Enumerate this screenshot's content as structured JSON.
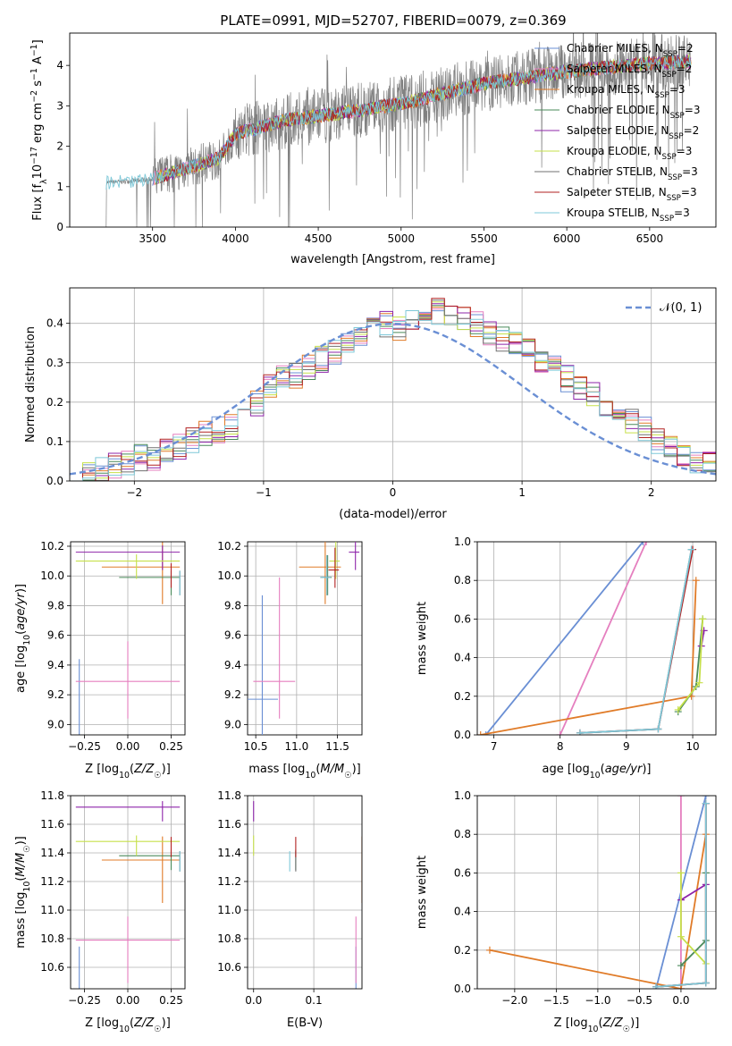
{
  "figure": {
    "title": "PLATE=0991, MJD=52707, FIBERID=0079, z=0.369"
  },
  "colors": {
    "grid": "#b0b0b0",
    "chabrier_miles": "#6a8fd4",
    "salpeter_miles": "#e57fbf",
    "kroupa_miles": "#e07b28",
    "chabrier_elodie": "#4a8a5a",
    "salpeter_elodie": "#8e24aa",
    "kroupa_elodie": "#c6e04a",
    "chabrier_stelib": "#707070",
    "salpeter_stelib": "#b22222",
    "kroupa_stelib": "#7ec8d8",
    "spectrum": "#808080",
    "gauss": "#6a8fd4"
  },
  "chart_data": [
    {
      "id": "spectrum",
      "type": "line",
      "xlabel": "wavelength [Angstrom, rest frame]",
      "ylabel_parts": [
        "Flux [f",
        "λ",
        "10",
        "−17",
        " erg cm",
        "−2",
        " s",
        "−1",
        " A",
        "−1",
        "]"
      ],
      "xlim": [
        3000,
        6900
      ],
      "ylim": [
        0,
        4.8
      ],
      "xticks": [
        3500,
        4000,
        4500,
        5000,
        5500,
        6000,
        6500
      ],
      "yticks": [
        0,
        1,
        2,
        3,
        4
      ],
      "legend_position": "upper right",
      "series": [
        {
          "key": "chabrier_miles",
          "label": "Chabrier MILES, N",
          "n": "2"
        },
        {
          "key": "salpeter_miles",
          "label": "Salpeter MILES, N",
          "n": "2"
        },
        {
          "key": "kroupa_miles",
          "label": "Kroupa MILES, N",
          "n": "3"
        },
        {
          "key": "chabrier_elodie",
          "label": "Chabrier ELODIE, N",
          "n": "3"
        },
        {
          "key": "salpeter_elodie",
          "label": "Salpeter ELODIE, N",
          "n": "2"
        },
        {
          "key": "kroupa_elodie",
          "label": "Kroupa ELODIE, N",
          "n": "3"
        },
        {
          "key": "chabrier_stelib",
          "label": "Chabrier STELIB, N",
          "n": "3"
        },
        {
          "key": "salpeter_stelib",
          "label": "Salpeter STELIB, N",
          "n": "3"
        },
        {
          "key": "kroupa_stelib",
          "label": "Kroupa STELIB, N",
          "n": "3"
        }
      ],
      "legend_sub": "SSP",
      "continuum": [
        [
          3220,
          1.1
        ],
        [
          3400,
          1.15
        ],
        [
          3500,
          1.2
        ],
        [
          3700,
          1.45
        ],
        [
          3900,
          1.7
        ],
        [
          4000,
          2.3
        ],
        [
          4300,
          2.65
        ],
        [
          4600,
          2.8
        ],
        [
          5000,
          3.05
        ],
        [
          5500,
          3.55
        ],
        [
          6000,
          3.85
        ],
        [
          6500,
          4.05
        ],
        [
          6750,
          4.1
        ]
      ]
    },
    {
      "id": "residuals",
      "type": "bar",
      "xlabel": "(data-model)/error",
      "ylabel": "Normed distribution",
      "xlim": [
        -2.5,
        2.5
      ],
      "ylim": [
        0,
        0.49
      ],
      "xticks": [
        -2,
        -1,
        0,
        1,
        2
      ],
      "yticks": [
        0.0,
        0.1,
        0.2,
        0.3,
        0.4
      ],
      "legend_position": "upper right",
      "legend_label": "𝒩(0, 1)",
      "bin_width": 0.1,
      "bins_start": -2.5,
      "base_values": [
        0.02,
        0.02,
        0.03,
        0.04,
        0.05,
        0.06,
        0.06,
        0.08,
        0.09,
        0.1,
        0.12,
        0.13,
        0.14,
        0.18,
        0.2,
        0.24,
        0.26,
        0.27,
        0.29,
        0.31,
        0.33,
        0.36,
        0.37,
        0.39,
        0.4,
        0.39,
        0.4,
        0.41,
        0.43,
        0.42,
        0.41,
        0.4,
        0.38,
        0.36,
        0.35,
        0.33,
        0.31,
        0.29,
        0.26,
        0.24,
        0.22,
        0.19,
        0.17,
        0.15,
        0.13,
        0.1,
        0.08,
        0.06,
        0.05,
        0.04
      ]
    },
    {
      "id": "age_vs_Z",
      "type": "scatter",
      "xlabel": "Z [log10(Z/Z☉)]",
      "ylabel": "age [log10(age/yr)]",
      "xlim": [
        -0.33,
        0.33
      ],
      "ylim": [
        8.93,
        10.23
      ],
      "xticks": [
        -0.25,
        0.0,
        0.25
      ],
      "yticks": [
        9.0,
        9.2,
        9.4,
        9.6,
        9.8,
        10.0,
        10.2
      ]
    },
    {
      "id": "age_vs_mass",
      "type": "scatter",
      "xlabel": "mass [log10(M/M☉)]",
      "xlim": [
        10.4,
        11.8
      ],
      "ylim": [
        8.93,
        10.23
      ],
      "xticks": [
        10.5,
        11.0,
        11.5
      ],
      "yticks": [
        9.0,
        9.2,
        9.4,
        9.6,
        9.8,
        10.0,
        10.2
      ]
    },
    {
      "id": "weight_vs_age",
      "type": "line",
      "xlabel": "age [log10(age/yr)]",
      "ylabel": "mass weight",
      "xlim": [
        6.75,
        10.35
      ],
      "ylim": [
        0,
        1
      ],
      "xticks": [
        7,
        8,
        9,
        10
      ],
      "yticks": [
        0.0,
        0.2,
        0.4,
        0.6,
        0.8,
        1.0
      ]
    },
    {
      "id": "mass_vs_Z",
      "type": "scatter",
      "xlabel": "Z [log10(Z/Z☉)]",
      "ylabel": "mass [log10(M/M☉)]",
      "xlim": [
        -0.33,
        0.33
      ],
      "ylim": [
        10.45,
        11.8
      ],
      "xticks": [
        -0.25,
        0.0,
        0.25
      ],
      "yticks": [
        10.6,
        10.8,
        11.0,
        11.2,
        11.4,
        11.6,
        11.8
      ]
    },
    {
      "id": "mass_vs_ebv",
      "type": "scatter",
      "xlabel": "E(B-V)",
      "xlim": [
        -0.01,
        0.18
      ],
      "ylim": [
        10.45,
        11.8
      ],
      "xticks": [
        0.0,
        0.1
      ],
      "yticks": [
        10.6,
        10.8,
        11.0,
        11.2,
        11.4,
        11.6,
        11.8
      ]
    },
    {
      "id": "weight_vs_Z",
      "type": "line",
      "xlabel": "Z [log10(Z/Z☉)]",
      "ylabel": "mass weight",
      "xlim": [
        -2.45,
        0.42
      ],
      "ylim": [
        0,
        1
      ],
      "xticks": [
        -2.0,
        -1.5,
        -1.0,
        -0.5,
        0.0
      ],
      "yticks": [
        0.0,
        0.2,
        0.4,
        0.6,
        0.8,
        1.0
      ]
    }
  ],
  "fits": [
    {
      "key": "chabrier_miles",
      "Z": [
        -0.28,
        0.3,
        0.3
      ],
      "age": [
        9.17,
        9.17,
        9.17
      ],
      "mass": [
        10.58,
        10.58,
        10.58
      ],
      "ebv": 0.17
    },
    {
      "key": "salpeter_miles",
      "Z": [
        0.0,
        0.3,
        -0.3
      ],
      "age": [
        9.29,
        9.29,
        9.29
      ],
      "mass": [
        10.79,
        10.79,
        10.79
      ],
      "ebv": 0.17
    },
    {
      "key": "kroupa_miles",
      "Z": [
        0.2,
        0.3,
        -0.15
      ],
      "age": [
        10.06,
        10.06,
        10.06
      ],
      "mass": [
        11.35,
        11.35,
        11.35
      ],
      "ebv": 0.18
    },
    {
      "key": "chabrier_elodie",
      "Z": [
        0.25,
        0.3,
        -0.05
      ],
      "age": [
        9.99,
        9.99,
        9.99
      ],
      "mass": [
        11.38,
        11.38,
        11.38
      ],
      "ebv": 0.07
    },
    {
      "key": "salpeter_elodie",
      "Z": [
        0.2,
        0.3,
        -0.3
      ],
      "age": [
        10.16,
        10.16,
        10.16
      ],
      "mass": [
        11.72,
        11.72,
        11.72
      ],
      "ebv": 0.0
    },
    {
      "key": "kroupa_elodie",
      "Z": [
        0.05,
        0.3,
        -0.3
      ],
      "age": [
        10.1,
        10.1,
        10.1
      ],
      "mass": [
        11.48,
        11.48,
        11.48
      ],
      "ebv": 0.0
    },
    {
      "key": "chabrier_stelib",
      "Z": [
        0.3,
        0.3,
        0.3
      ],
      "age": [
        9.99,
        9.99,
        9.99
      ],
      "mass": [
        11.37,
        11.37,
        11.37
      ],
      "ebv": 0.07
    },
    {
      "key": "salpeter_stelib",
      "Z": [
        0.25,
        0.3,
        0.3
      ],
      "age": [
        10.04,
        10.04,
        10.04
      ],
      "mass": [
        11.47,
        11.47,
        11.47
      ],
      "ebv": 0.07
    },
    {
      "key": "kroupa_stelib",
      "Z": [
        0.3,
        0.3,
        0.3
      ],
      "age": [
        9.99,
        9.99,
        9.99
      ],
      "mass": [
        11.37,
        11.37,
        11.37
      ],
      "ebv": 0.06
    }
  ],
  "weights": [
    {
      "key": "chabrier_miles",
      "age": [
        6.88,
        9.25
      ],
      "w": [
        0.0,
        1.0
      ],
      "Z": [
        -0.3,
        0.3
      ],
      "wz": [
        0.0,
        1.0
      ]
    },
    {
      "key": "salpeter_miles",
      "age": [
        8.0,
        9.3
      ],
      "w": [
        0.0,
        1.0
      ],
      "Z": [
        0.0,
        0.0
      ],
      "wz": [
        0.0,
        1.0
      ]
    },
    {
      "key": "kroupa_miles",
      "age": [
        6.8,
        9.98,
        10.05
      ],
      "w": [
        0.0,
        0.2,
        0.8
      ],
      "Z": [
        -2.3,
        0.0,
        0.3
      ],
      "wz": [
        0.2,
        0.0,
        0.8
      ]
    },
    {
      "key": "chabrier_elodie",
      "age": [
        9.78,
        10.05,
        10.15
      ],
      "w": [
        0.12,
        0.25,
        0.6
      ],
      "Z": [
        0.0,
        0.3,
        0.3
      ],
      "wz": [
        0.12,
        0.25,
        0.6
      ]
    },
    {
      "key": "salpeter_elodie",
      "age": [
        10.13,
        10.17
      ],
      "w": [
        0.46,
        0.54
      ],
      "Z": [
        0.0,
        0.3
      ],
      "wz": [
        0.46,
        0.54
      ]
    },
    {
      "key": "kroupa_elodie",
      "age": [
        9.78,
        10.1,
        10.15
      ],
      "w": [
        0.13,
        0.27,
        0.6
      ],
      "Z": [
        0.3,
        0.0,
        0.0
      ],
      "wz": [
        0.13,
        0.27,
        0.6
      ]
    },
    {
      "key": "chabrier_stelib",
      "age": [
        8.3,
        9.48,
        9.98
      ],
      "w": [
        0.01,
        0.03,
        0.96
      ],
      "Z": [
        -0.3,
        0.3,
        0.3
      ],
      "wz": [
        0.01,
        0.03,
        0.96
      ]
    },
    {
      "key": "salpeter_stelib",
      "age": [
        8.3,
        9.48,
        10.0
      ],
      "w": [
        0.01,
        0.03,
        0.96
      ],
      "Z": [
        -0.3,
        0.3,
        0.3
      ],
      "wz": [
        0.01,
        0.03,
        0.96
      ]
    },
    {
      "key": "kroupa_stelib",
      "age": [
        8.3,
        9.48,
        9.98
      ],
      "w": [
        0.01,
        0.03,
        0.96
      ],
      "Z": [
        -0.3,
        0.3,
        0.3
      ],
      "wz": [
        0.01,
        0.03,
        0.96
      ]
    }
  ]
}
